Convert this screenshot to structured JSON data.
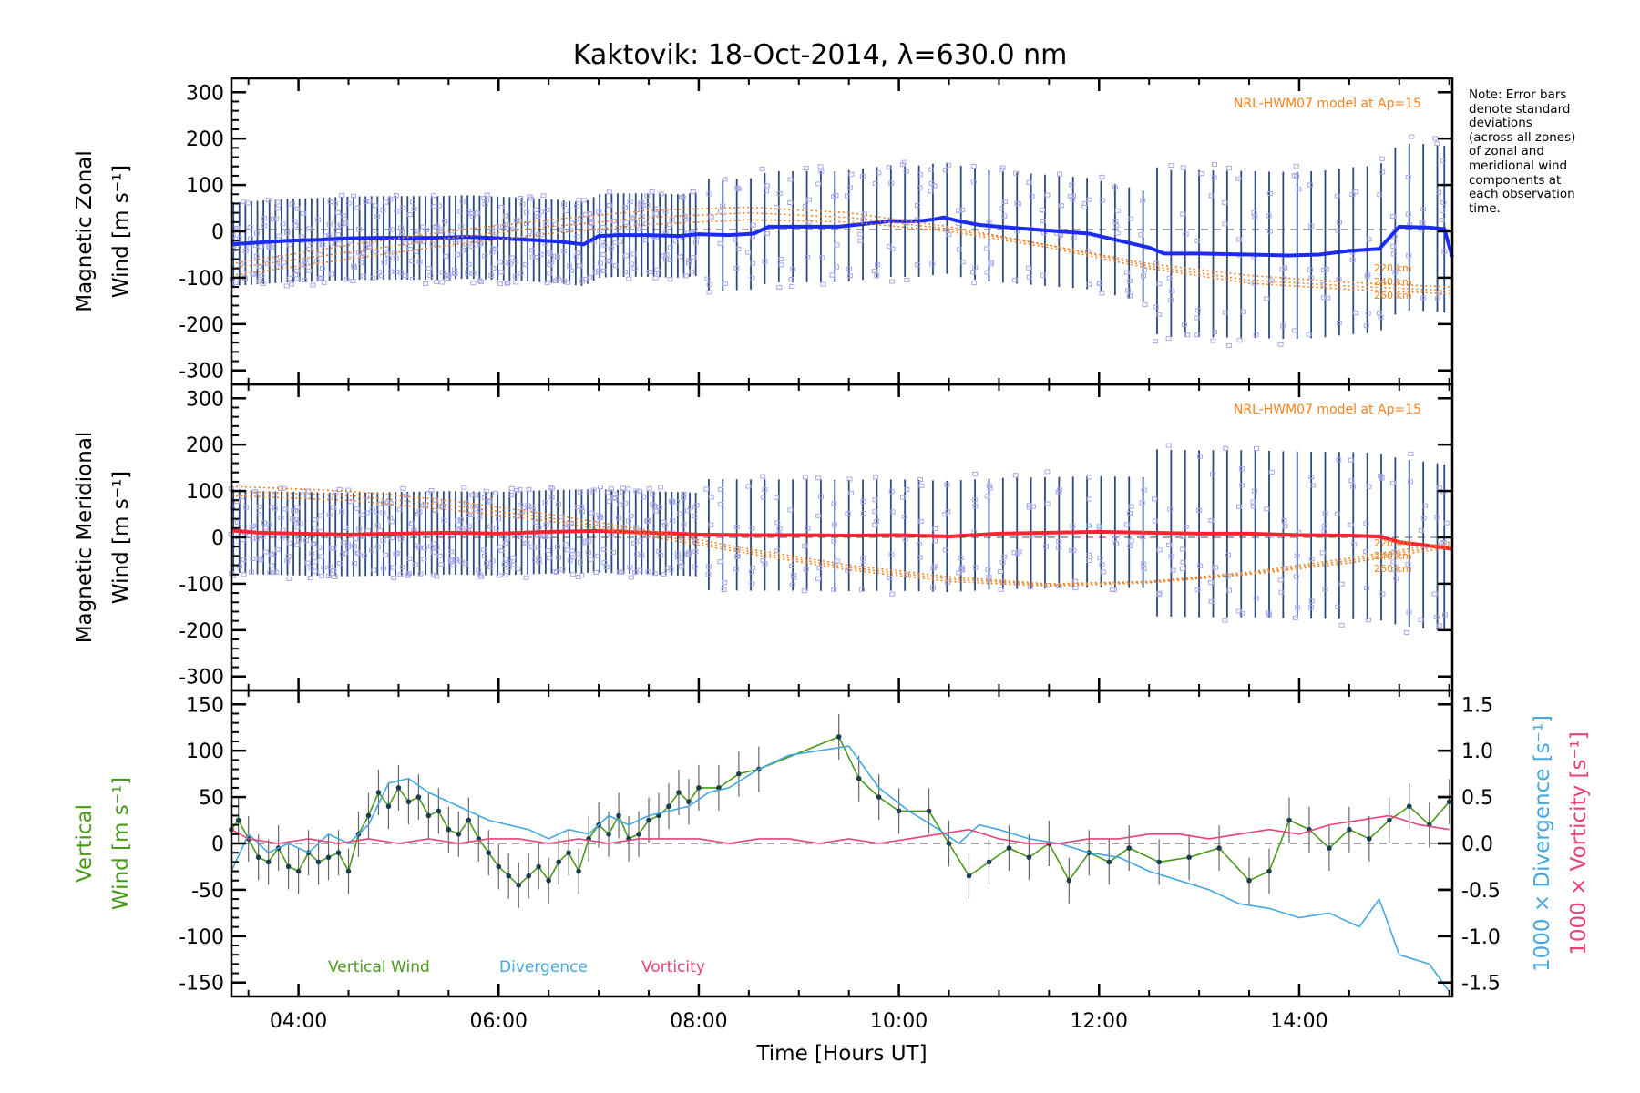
{
  "chart_data": [
    {
      "type": "line",
      "panel": "zonal",
      "title": "Kaktovik: 18-Oct-2014, λ=630.0 nm",
      "ylabel_line1": "Magnetic Zonal",
      "ylabel_line2": "Wind [m s⁻¹]",
      "ylim": [
        -330,
        330
      ],
      "yticks": [
        300,
        200,
        100,
        0,
        -100,
        -200,
        -300
      ],
      "xlim": [
        3.33,
        15.53
      ],
      "model_label": "NRL-HWM07 model at Ap=15",
      "altitude_labels": [
        "220 km",
        "240 km",
        "260 km"
      ],
      "series": [
        {
          "name": "",
          "color": "#1c2bf0",
          "x": [
            3.33,
            3.6,
            3.9,
            4.2,
            4.5,
            4.8,
            5.1,
            5.4,
            5.7,
            6.0,
            6.3,
            6.6,
            6.85,
            7.0,
            7.2,
            7.5,
            7.8,
            8.0,
            8.3,
            8.55,
            8.7,
            9.4,
            9.75,
            9.9,
            10.2,
            10.35,
            10.45,
            10.6,
            10.8,
            11.0,
            11.3,
            11.6,
            11.9,
            12.2,
            12.5,
            12.65,
            13.0,
            13.5,
            13.9,
            14.2,
            14.5,
            14.8,
            15.0,
            15.3,
            15.45,
            15.53
          ],
          "y": [
            -28,
            -24,
            -20,
            -18,
            -15,
            -14,
            -14,
            -14,
            -12,
            -15,
            -18,
            -22,
            -28,
            -10,
            -8,
            -8,
            -10,
            -6,
            -8,
            -5,
            10,
            10,
            18,
            22,
            22,
            26,
            30,
            22,
            14,
            10,
            5,
            0,
            -5,
            -20,
            -35,
            -48,
            -48,
            -50,
            -52,
            -50,
            -42,
            -38,
            10,
            8,
            5,
            -55
          ]
        },
        {
          "name": "220 km",
          "color": "#f58220",
          "x": [
            3.33,
            4.5,
            5.5,
            6.5,
            7.5,
            8.5,
            9.5,
            10.5,
            11.5,
            12.5,
            13.5,
            14.5,
            15.53
          ],
          "y": [
            -70,
            -30,
            0,
            25,
            45,
            52,
            40,
            10,
            -30,
            -70,
            -95,
            -110,
            -120
          ]
        },
        {
          "name": "240 km",
          "color": "#f58220",
          "x": [
            3.33,
            4.5,
            5.5,
            6.5,
            7.5,
            8.5,
            9.5,
            10.5,
            11.5,
            12.5,
            13.5,
            14.5,
            15.53
          ],
          "y": [
            -80,
            -45,
            -15,
            10,
            30,
            40,
            30,
            5,
            -30,
            -75,
            -105,
            -118,
            -128
          ]
        },
        {
          "name": "260 km",
          "color": "#f58220",
          "x": [
            3.33,
            4.5,
            5.5,
            6.5,
            7.5,
            8.5,
            9.5,
            10.5,
            11.5,
            12.5,
            13.5,
            14.5,
            15.53
          ],
          "y": [
            -95,
            -60,
            -30,
            -5,
            15,
            25,
            20,
            0,
            -35,
            -80,
            -112,
            -125,
            -135
          ]
        }
      ]
    },
    {
      "type": "line",
      "panel": "meridional",
      "ylabel_line1": "Magnetic Meridional",
      "ylabel_line2": "Wind [m s⁻¹]",
      "ylim": [
        -330,
        330
      ],
      "yticks": [
        300,
        200,
        100,
        0,
        -100,
        -200,
        -300
      ],
      "xlim": [
        3.33,
        15.53
      ],
      "model_label": "NRL-HWM07 model at Ap=15",
      "altitude_labels": [
        "220 km",
        "240 km",
        "260 km"
      ],
      "series": [
        {
          "name": "",
          "color": "#ff2233",
          "x": [
            3.33,
            3.6,
            4.0,
            4.5,
            5.0,
            5.5,
            6.0,
            6.5,
            7.0,
            7.5,
            8.0,
            8.5,
            9.0,
            9.5,
            10.0,
            10.5,
            11.0,
            11.5,
            12.0,
            12.5,
            13.0,
            13.5,
            14.0,
            14.5,
            14.8,
            15.0,
            15.3,
            15.53
          ],
          "y": [
            15,
            10,
            8,
            6,
            8,
            10,
            8,
            12,
            14,
            10,
            6,
            5,
            5,
            4,
            5,
            2,
            8,
            10,
            12,
            10,
            8,
            8,
            5,
            4,
            2,
            -10,
            -18,
            -25
          ]
        },
        {
          "name": "220 km",
          "color": "#f58220",
          "x": [
            3.33,
            4.5,
            5.5,
            6.5,
            7.5,
            8.5,
            9.5,
            10.5,
            11.5,
            12.5,
            13.5,
            14.5,
            15.53
          ],
          "y": [
            110,
            100,
            80,
            50,
            15,
            -25,
            -60,
            -85,
            -100,
            -95,
            -75,
            -45,
            -10
          ]
        },
        {
          "name": "240 km",
          "color": "#f58220",
          "x": [
            3.33,
            4.5,
            5.5,
            6.5,
            7.5,
            8.5,
            9.5,
            10.5,
            11.5,
            12.5,
            13.5,
            14.5,
            15.53
          ],
          "y": [
            100,
            90,
            70,
            42,
            8,
            -30,
            -65,
            -90,
            -102,
            -96,
            -78,
            -50,
            -15
          ]
        },
        {
          "name": "260 km",
          "color": "#f58220",
          "x": [
            3.33,
            4.5,
            5.5,
            6.5,
            7.5,
            8.5,
            9.5,
            10.5,
            11.5,
            12.5,
            13.5,
            14.5,
            15.53
          ],
          "y": [
            90,
            80,
            60,
            35,
            2,
            -35,
            -70,
            -95,
            -105,
            -98,
            -80,
            -55,
            -20
          ]
        }
      ]
    },
    {
      "type": "line",
      "panel": "vertical",
      "ylabel_line1": "Vertical",
      "ylabel_line2": "Wind [m s⁻¹]",
      "right_ylabel_1": "1000 × Divergence [s⁻¹]",
      "right_ylabel_2": "1000 × Vorticity [s⁻¹]",
      "ylim": [
        -165,
        165
      ],
      "yticks": [
        150,
        100,
        50,
        0,
        -50,
        -100,
        -150
      ],
      "y2lim": [
        -1.65,
        1.65
      ],
      "y2ticks": [
        1.5,
        1.0,
        0.5,
        0.0,
        -0.5,
        -1.0,
        -1.5
      ],
      "xlim": [
        3.33,
        15.53
      ],
      "xticks": [
        4,
        6,
        8,
        10,
        12,
        14
      ],
      "xticklabels": [
        "04:00",
        "06:00",
        "08:00",
        "10:00",
        "12:00",
        "14:00"
      ],
      "xlabel": "Time [Hours UT]",
      "series": [
        {
          "name": "Vertical Wind",
          "color": "#4a9a1a",
          "axis": "left",
          "x": [
            3.33,
            3.4,
            3.5,
            3.6,
            3.7,
            3.8,
            3.9,
            4.0,
            4.1,
            4.2,
            4.3,
            4.4,
            4.5,
            4.6,
            4.7,
            4.8,
            4.9,
            5.0,
            5.1,
            5.2,
            5.3,
            5.4,
            5.5,
            5.6,
            5.7,
            5.8,
            5.9,
            6.0,
            6.1,
            6.2,
            6.3,
            6.4,
            6.5,
            6.6,
            6.7,
            6.8,
            6.9,
            7.0,
            7.1,
            7.2,
            7.3,
            7.4,
            7.5,
            7.6,
            7.7,
            7.8,
            7.9,
            8.0,
            8.2,
            8.4,
            8.6,
            9.4,
            9.6,
            9.8,
            10.0,
            10.3,
            10.5,
            10.7,
            10.9,
            11.1,
            11.3,
            11.5,
            11.7,
            11.9,
            12.1,
            12.3,
            12.6,
            12.9,
            13.2,
            13.5,
            13.7,
            13.9,
            14.1,
            14.3,
            14.5,
            14.7,
            14.9,
            15.1,
            15.3,
            15.5
          ],
          "y": [
            15,
            25,
            5,
            -15,
            -20,
            -5,
            -25,
            -30,
            -10,
            -20,
            -15,
            -10,
            -30,
            10,
            30,
            55,
            40,
            60,
            45,
            50,
            30,
            35,
            15,
            10,
            25,
            5,
            -10,
            -25,
            -35,
            -45,
            -35,
            -25,
            -40,
            -20,
            -10,
            -30,
            5,
            20,
            10,
            30,
            5,
            10,
            25,
            30,
            40,
            55,
            45,
            60,
            60,
            75,
            80,
            115,
            70,
            50,
            35,
            35,
            0,
            -35,
            -20,
            -5,
            -15,
            0,
            -40,
            -10,
            -20,
            -5,
            -20,
            -15,
            -5,
            -40,
            -30,
            25,
            15,
            -5,
            15,
            5,
            25,
            40,
            20,
            45
          ]
        },
        {
          "name": "Divergence",
          "color": "#44a8e0",
          "axis": "right",
          "x": [
            3.33,
            3.5,
            3.7,
            3.9,
            4.1,
            4.3,
            4.5,
            4.7,
            4.9,
            5.1,
            5.3,
            5.5,
            5.7,
            5.9,
            6.1,
            6.3,
            6.5,
            6.7,
            6.9,
            7.1,
            7.3,
            7.5,
            7.7,
            7.9,
            8.1,
            8.3,
            8.6,
            8.9,
            9.2,
            9.5,
            9.8,
            10.1,
            10.4,
            10.6,
            10.8,
            11.0,
            11.3,
            11.6,
            11.9,
            12.2,
            12.5,
            12.8,
            13.1,
            13.4,
            13.7,
            14.0,
            14.3,
            14.6,
            14.8,
            15.0,
            15.3,
            15.5
          ],
          "y": [
            -0.3,
            0.1,
            -0.1,
            0.0,
            -0.1,
            0.1,
            0.0,
            0.2,
            0.65,
            0.7,
            0.55,
            0.45,
            0.35,
            0.25,
            0.2,
            0.15,
            0.05,
            0.15,
            0.1,
            0.3,
            0.2,
            0.3,
            0.35,
            0.4,
            0.55,
            0.6,
            0.8,
            0.95,
            1.0,
            1.05,
            0.6,
            0.35,
            0.15,
            0.0,
            0.2,
            0.15,
            0.05,
            0.0,
            -0.1,
            -0.15,
            -0.3,
            -0.4,
            -0.5,
            -0.65,
            -0.7,
            -0.8,
            -0.75,
            -0.9,
            -0.6,
            -1.2,
            -1.3,
            -1.6
          ]
        },
        {
          "name": "Vorticity",
          "color": "#e8407a",
          "axis": "right",
          "x": [
            3.33,
            3.5,
            3.8,
            4.1,
            4.4,
            4.7,
            5.0,
            5.3,
            5.6,
            5.9,
            6.2,
            6.5,
            6.8,
            7.1,
            7.4,
            7.7,
            8.0,
            8.3,
            8.6,
            8.9,
            9.2,
            9.5,
            9.8,
            10.1,
            10.4,
            10.7,
            11.0,
            11.3,
            11.6,
            11.9,
            12.2,
            12.5,
            12.8,
            13.1,
            13.4,
            13.7,
            14.0,
            14.3,
            14.6,
            14.9,
            15.2,
            15.5
          ],
          "y": [
            0.15,
            0.05,
            0.0,
            0.05,
            0.0,
            0.05,
            0.0,
            0.05,
            0.0,
            0.05,
            0.05,
            0.0,
            0.05,
            0.0,
            0.05,
            0.05,
            0.05,
            0.0,
            0.05,
            0.05,
            0.0,
            0.05,
            0.0,
            0.05,
            0.1,
            0.15,
            0.05,
            0.0,
            0.0,
            0.05,
            0.05,
            0.1,
            0.1,
            0.05,
            0.1,
            0.15,
            0.1,
            0.2,
            0.25,
            0.3,
            0.2,
            0.15
          ]
        }
      ]
    }
  ],
  "note": {
    "lines": [
      "Note: Error bars",
      "denote standard",
      "deviations",
      "(across all zones)",
      "of zonal and",
      "meridional wind",
      "components at",
      "each observation",
      "time."
    ]
  }
}
